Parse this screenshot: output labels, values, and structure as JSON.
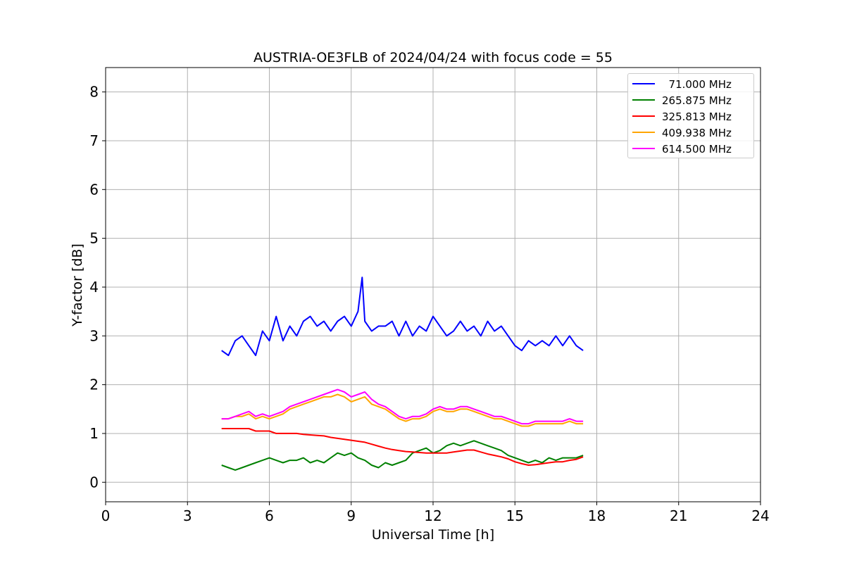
{
  "chart_data": {
    "type": "line",
    "title": "AUSTRIA-OE3FLB of 2024/04/24 with focus code = 55",
    "xlabel": "Universal Time [h]",
    "ylabel": "Y-factor [dB]",
    "xlim": [
      0,
      24
    ],
    "ylim": [
      -0.4,
      8.5
    ],
    "x_ticks": [
      0,
      3,
      6,
      9,
      12,
      15,
      18,
      21,
      24
    ],
    "y_ticks": [
      0,
      1,
      2,
      3,
      4,
      5,
      6,
      7,
      8
    ],
    "grid": true,
    "legend_position": "top-right",
    "series": [
      {
        "name": "  71.000 MHz",
        "color": "#0000ff",
        "x": [
          4.25,
          4.5,
          4.75,
          5.0,
          5.25,
          5.5,
          5.75,
          6.0,
          6.25,
          6.5,
          6.75,
          7.0,
          7.25,
          7.5,
          7.75,
          8.0,
          8.25,
          8.5,
          8.75,
          9.0,
          9.25,
          9.4,
          9.5,
          9.75,
          10.0,
          10.25,
          10.5,
          10.75,
          11.0,
          11.25,
          11.5,
          11.75,
          12.0,
          12.25,
          12.5,
          12.75,
          13.0,
          13.25,
          13.5,
          13.75,
          14.0,
          14.25,
          14.5,
          14.75,
          15.0,
          15.25,
          15.5,
          15.75,
          16.0,
          16.25,
          16.5,
          16.75,
          17.0,
          17.25,
          17.5
        ],
        "y": [
          2.7,
          2.6,
          2.9,
          3.0,
          2.8,
          2.6,
          3.1,
          2.9,
          3.4,
          2.9,
          3.2,
          3.0,
          3.3,
          3.4,
          3.2,
          3.3,
          3.1,
          3.3,
          3.4,
          3.2,
          3.5,
          4.2,
          3.3,
          3.1,
          3.2,
          3.2,
          3.3,
          3.0,
          3.3,
          3.0,
          3.2,
          3.1,
          3.4,
          3.2,
          3.0,
          3.1,
          3.3,
          3.1,
          3.2,
          3.0,
          3.3,
          3.1,
          3.2,
          3.0,
          2.8,
          2.7,
          2.9,
          2.8,
          2.9,
          2.8,
          3.0,
          2.8,
          3.0,
          2.8,
          2.7
        ]
      },
      {
        "name": "265.875 MHz",
        "color": "#008000",
        "x": [
          4.25,
          4.5,
          4.75,
          5.0,
          5.25,
          5.5,
          5.75,
          6.0,
          6.25,
          6.5,
          6.75,
          7.0,
          7.25,
          7.5,
          7.75,
          8.0,
          8.25,
          8.5,
          8.75,
          9.0,
          9.25,
          9.5,
          9.75,
          10.0,
          10.25,
          10.5,
          10.75,
          11.0,
          11.25,
          11.5,
          11.75,
          12.0,
          12.25,
          12.5,
          12.75,
          13.0,
          13.25,
          13.5,
          13.75,
          14.0,
          14.25,
          14.5,
          14.75,
          15.0,
          15.25,
          15.5,
          15.75,
          16.0,
          16.25,
          16.5,
          16.75,
          17.0,
          17.25,
          17.5
        ],
        "y": [
          0.35,
          0.3,
          0.25,
          0.3,
          0.35,
          0.4,
          0.45,
          0.5,
          0.45,
          0.4,
          0.45,
          0.45,
          0.5,
          0.4,
          0.45,
          0.4,
          0.5,
          0.6,
          0.55,
          0.6,
          0.5,
          0.45,
          0.35,
          0.3,
          0.4,
          0.35,
          0.4,
          0.45,
          0.6,
          0.65,
          0.7,
          0.6,
          0.65,
          0.75,
          0.8,
          0.75,
          0.8,
          0.85,
          0.8,
          0.75,
          0.7,
          0.65,
          0.55,
          0.5,
          0.45,
          0.4,
          0.45,
          0.4,
          0.5,
          0.45,
          0.5,
          0.5,
          0.5,
          0.55
        ]
      },
      {
        "name": "325.813 MHz",
        "color": "#ff0000",
        "x": [
          4.25,
          4.5,
          4.75,
          5.0,
          5.25,
          5.5,
          5.75,
          6.0,
          6.25,
          6.5,
          6.75,
          7.0,
          7.25,
          7.5,
          7.75,
          8.0,
          8.25,
          8.5,
          8.75,
          9.0,
          9.25,
          9.5,
          9.75,
          10.0,
          10.25,
          10.5,
          10.75,
          11.0,
          11.25,
          11.5,
          11.75,
          12.0,
          12.25,
          12.5,
          12.75,
          13.0,
          13.25,
          13.5,
          13.75,
          14.0,
          14.25,
          14.5,
          14.75,
          15.0,
          15.25,
          15.5,
          15.75,
          16.0,
          16.25,
          16.5,
          16.75,
          17.0,
          17.25,
          17.5
        ],
        "y": [
          1.1,
          1.1,
          1.1,
          1.1,
          1.1,
          1.05,
          1.05,
          1.05,
          1.0,
          1.0,
          1.0,
          1.0,
          0.98,
          0.97,
          0.96,
          0.95,
          0.92,
          0.9,
          0.88,
          0.86,
          0.84,
          0.82,
          0.78,
          0.74,
          0.7,
          0.67,
          0.65,
          0.63,
          0.62,
          0.61,
          0.6,
          0.6,
          0.6,
          0.6,
          0.62,
          0.64,
          0.66,
          0.66,
          0.62,
          0.58,
          0.55,
          0.52,
          0.48,
          0.42,
          0.38,
          0.35,
          0.36,
          0.38,
          0.4,
          0.42,
          0.42,
          0.45,
          0.47,
          0.52
        ]
      },
      {
        "name": "409.938 MHz",
        "color": "#ffa500",
        "x": [
          4.25,
          4.5,
          4.75,
          5.0,
          5.25,
          5.5,
          5.75,
          6.0,
          6.25,
          6.5,
          6.75,
          7.0,
          7.25,
          7.5,
          7.75,
          8.0,
          8.25,
          8.5,
          8.75,
          9.0,
          9.25,
          9.5,
          9.75,
          10.0,
          10.25,
          10.5,
          10.75,
          11.0,
          11.25,
          11.5,
          11.75,
          12.0,
          12.25,
          12.5,
          12.75,
          13.0,
          13.25,
          13.5,
          13.75,
          14.0,
          14.25,
          14.5,
          14.75,
          15.0,
          15.25,
          15.5,
          15.75,
          16.0,
          16.25,
          16.5,
          16.75,
          17.0,
          17.25,
          17.5
        ],
        "y": [
          1.3,
          1.3,
          1.35,
          1.35,
          1.4,
          1.3,
          1.35,
          1.3,
          1.35,
          1.4,
          1.5,
          1.55,
          1.6,
          1.65,
          1.7,
          1.75,
          1.75,
          1.8,
          1.75,
          1.65,
          1.7,
          1.75,
          1.6,
          1.55,
          1.5,
          1.4,
          1.3,
          1.25,
          1.3,
          1.3,
          1.35,
          1.45,
          1.5,
          1.45,
          1.45,
          1.5,
          1.5,
          1.45,
          1.4,
          1.35,
          1.3,
          1.3,
          1.25,
          1.2,
          1.15,
          1.15,
          1.2,
          1.2,
          1.2,
          1.2,
          1.2,
          1.25,
          1.2,
          1.2
        ]
      },
      {
        "name": "614.500 MHz",
        "color": "#ff00ff",
        "x": [
          4.25,
          4.5,
          4.75,
          5.0,
          5.25,
          5.5,
          5.75,
          6.0,
          6.25,
          6.5,
          6.75,
          7.0,
          7.25,
          7.5,
          7.75,
          8.0,
          8.25,
          8.5,
          8.75,
          9.0,
          9.25,
          9.5,
          9.75,
          10.0,
          10.25,
          10.5,
          10.75,
          11.0,
          11.25,
          11.5,
          11.75,
          12.0,
          12.25,
          12.5,
          12.75,
          13.0,
          13.25,
          13.5,
          13.75,
          14.0,
          14.25,
          14.5,
          14.75,
          15.0,
          15.25,
          15.5,
          15.75,
          16.0,
          16.25,
          16.5,
          16.75,
          17.0,
          17.25,
          17.5
        ],
        "y": [
          1.3,
          1.3,
          1.35,
          1.4,
          1.45,
          1.35,
          1.4,
          1.35,
          1.4,
          1.45,
          1.55,
          1.6,
          1.65,
          1.7,
          1.75,
          1.8,
          1.85,
          1.9,
          1.85,
          1.75,
          1.8,
          1.85,
          1.7,
          1.6,
          1.55,
          1.45,
          1.35,
          1.3,
          1.35,
          1.35,
          1.4,
          1.5,
          1.55,
          1.5,
          1.5,
          1.55,
          1.55,
          1.5,
          1.45,
          1.4,
          1.35,
          1.35,
          1.3,
          1.25,
          1.2,
          1.2,
          1.25,
          1.25,
          1.25,
          1.25,
          1.25,
          1.3,
          1.25,
          1.25
        ]
      }
    ]
  }
}
